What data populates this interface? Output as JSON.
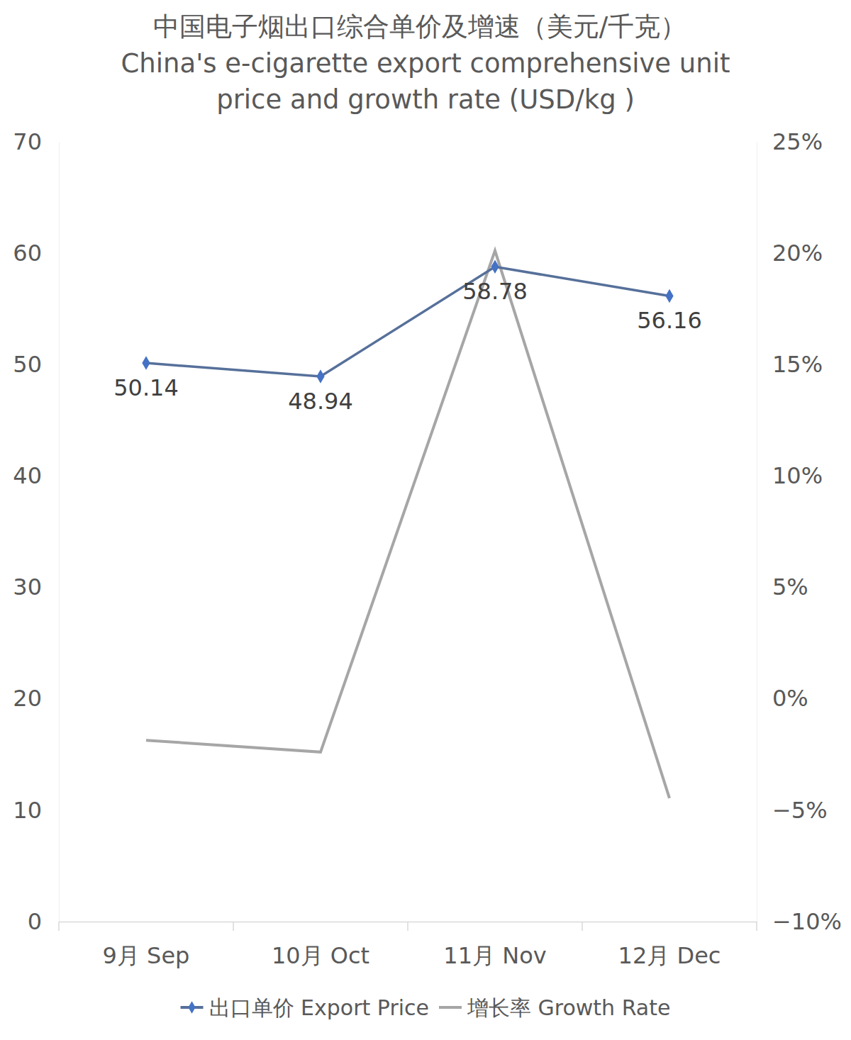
{
  "chart_data": {
    "type": "line",
    "title": "中国电子烟出口综合单价及增速（美元/千克）",
    "subtitle": [
      "China's e-cigarette export comprehensive unit",
      "price and growth rate (USD/kg )"
    ],
    "categories": [
      "9月 Sep",
      "10月 Oct",
      "11月 Nov",
      "12月 Dec"
    ],
    "series": [
      {
        "name": "出口单价 Export Price",
        "color": "#56709a",
        "marker": "diamond",
        "data_labels": true,
        "values": [
          50.14,
          48.94,
          58.78,
          56.16
        ]
      },
      {
        "name": "增长率 Growth Rate",
        "color": "#a6a6a6",
        "axis": "y2",
        "values": [
          -1.86,
          -2.39,
          20.11,
          -4.46
        ]
      }
    ],
    "ylim": [
      0,
      70
    ],
    "yticks": [
      0,
      10,
      20,
      30,
      40,
      50,
      60,
      70
    ],
    "y2lim": [
      -10,
      25
    ],
    "y2ticks": [
      {
        "value": -10,
        "label": "−10%"
      },
      {
        "value": -5,
        "label": "−5%"
      },
      {
        "value": 0,
        "label": "0%"
      },
      {
        "value": 5,
        "label": "5%"
      },
      {
        "value": 10,
        "label": "10%"
      },
      {
        "value": 15,
        "label": "15%"
      },
      {
        "value": 20,
        "label": "20%"
      },
      {
        "value": 25,
        "label": "25%"
      }
    ],
    "grid": false,
    "legend": "bottom"
  }
}
